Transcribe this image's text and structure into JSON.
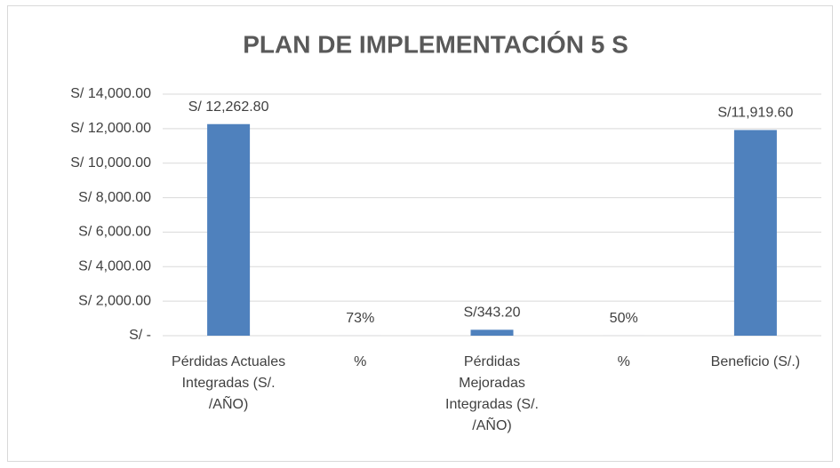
{
  "chart_data": {
    "type": "bar",
    "title": "PLAN DE IMPLEMENTACIÓN 5 S",
    "categories": [
      "Pérdidas Actuales Integradas (S/. /AÑO)",
      "%",
      "Pérdidas Mejoradas Integradas (S/. /AÑO)",
      "%",
      "Beneficio (S/.)"
    ],
    "values": [
      12262.8,
      0.73,
      343.2,
      0.5,
      11919.6
    ],
    "value_labels": [
      "S/ 12,262.80",
      "73%",
      "S/343.20",
      "50%",
      "S/11,919.60"
    ],
    "color": "#4f81bd",
    "ylim": [
      0,
      14000
    ],
    "yticks": [
      {
        "value": 0,
        "label": "S/ -"
      },
      {
        "value": 2000,
        "label": "S/ 2,000.00"
      },
      {
        "value": 4000,
        "label": "S/ 4,000.00"
      },
      {
        "value": 6000,
        "label": "S/ 6,000.00"
      },
      {
        "value": 8000,
        "label": "S/ 8,000.00"
      },
      {
        "value": 10000,
        "label": "S/ 10,000.00"
      },
      {
        "value": 12000,
        "label": "S/ 12,000.00"
      },
      {
        "value": 14000,
        "label": "S/ 14,000.00"
      }
    ],
    "grid": true
  }
}
